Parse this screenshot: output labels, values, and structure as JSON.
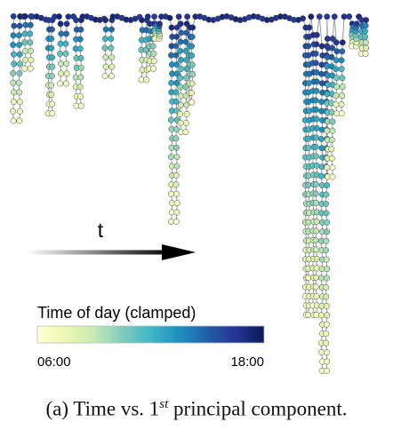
{
  "chart_data": {
    "type": "scatter",
    "xlabel": "",
    "ylabel": "",
    "grid": false,
    "legend": "none",
    "arrow_label": "t",
    "colorbar": {
      "title": "Time of day (clamped)",
      "min_label": "06:00",
      "max_label": "18:00",
      "min": 6,
      "max": 18,
      "colors": [
        "#ffffd9",
        "#edf8b1",
        "#c7e9b4",
        "#7fcdbb",
        "#41b6c4",
        "#1d91c0",
        "#225ea8",
        "#253494",
        "#081d58"
      ]
    },
    "x_range": [
      0,
      100
    ],
    "y_range": [
      0,
      100
    ],
    "dives": [
      {
        "x": 2.5,
        "top": 98,
        "depth": 70,
        "width": 1.6
      },
      {
        "x": 5.5,
        "top": 98,
        "depth": 84,
        "width": 1.4
      },
      {
        "x": 11.5,
        "top": 97,
        "depth": 72,
        "width": 0.8
      },
      {
        "x": 15.0,
        "top": 96,
        "depth": 80,
        "width": 1.5
      },
      {
        "x": 19.0,
        "top": 97,
        "depth": 74,
        "width": 1.2
      },
      {
        "x": 27.0,
        "top": 97,
        "depth": 82,
        "width": 1.6
      },
      {
        "x": 36.5,
        "top": 97,
        "depth": 81,
        "width": 1.2
      },
      {
        "x": 38.5,
        "top": 96,
        "depth": 84,
        "width": 1.0
      },
      {
        "x": 40.0,
        "top": 96,
        "depth": 92,
        "width": 1.0
      },
      {
        "x": 44.5,
        "top": 95,
        "depth": 43,
        "width": 1.3
      },
      {
        "x": 47.0,
        "top": 96,
        "depth": 67,
        "width": 1.5
      },
      {
        "x": 49.0,
        "top": 95,
        "depth": 75,
        "width": 0.6
      },
      {
        "x": 80.0,
        "top": 95,
        "depth": 18,
        "width": 0.8
      },
      {
        "x": 82.0,
        "top": 93,
        "depth": 18,
        "width": 0.8
      },
      {
        "x": 84.5,
        "top": 90,
        "depth": 3,
        "width": 1.2
      },
      {
        "x": 86.0,
        "top": 92,
        "depth": 55,
        "width": 1.2
      },
      {
        "x": 88.5,
        "top": 91,
        "depth": 72,
        "width": 1.5
      },
      {
        "x": 92.5,
        "top": 96,
        "depth": 90,
        "width": 1.0
      },
      {
        "x": 95.0,
        "top": 97,
        "depth": 88,
        "width": 1.0
      }
    ]
  },
  "caption": {
    "prefix": "(a) Time vs. 1",
    "superscript": "st",
    "suffix": " principal component."
  }
}
